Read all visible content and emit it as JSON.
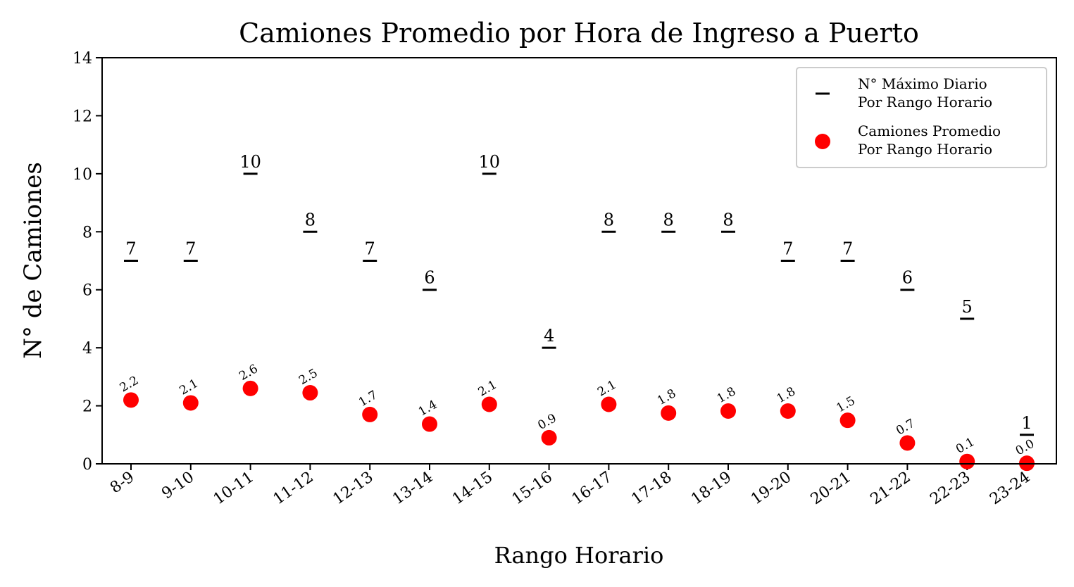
{
  "chart_data": {
    "type": "scatter",
    "title": "Camiones Promedio por Hora de Ingreso a Puerto",
    "xlabel": "Rango Horario",
    "ylabel": "N° de Camiones",
    "ylim": [
      0,
      14
    ],
    "yticks": [
      0,
      2,
      4,
      6,
      8,
      10,
      12,
      14
    ],
    "categories": [
      "8-9",
      "9-10",
      "10-11",
      "11-12",
      "12-13",
      "13-14",
      "14-15",
      "15-16",
      "16-17",
      "17-18",
      "18-19",
      "19-20",
      "20-21",
      "21-22",
      "22-23",
      "23-24"
    ],
    "series": [
      {
        "name": "N° Máximo Diario\nPor Rango Horario",
        "marker": "hline",
        "color": "#000000",
        "values": [
          7,
          7,
          10,
          8,
          7,
          6,
          10,
          4,
          8,
          8,
          8,
          7,
          7,
          6,
          5,
          1
        ],
        "labels": [
          "7",
          "7",
          "10",
          "8",
          "7",
          "6",
          "10",
          "4",
          "8",
          "8",
          "8",
          "7",
          "7",
          "6",
          "5",
          "1"
        ]
      },
      {
        "name": "Camiones Promedio\nPor Rango Horario",
        "marker": "circle",
        "color": "#ff0000",
        "values": [
          2.2,
          2.1,
          2.6,
          2.45,
          1.7,
          1.37,
          2.05,
          0.9,
          2.05,
          1.75,
          1.82,
          1.82,
          1.5,
          0.72,
          0.08,
          0.02
        ],
        "labels": [
          "2.2",
          "2.1",
          "2.6",
          "2.5",
          "1.7",
          "1.4",
          "2.1",
          "0.9",
          "2.1",
          "1.8",
          "1.8",
          "1.8",
          "1.5",
          "0.7",
          "0.1",
          "0.0"
        ]
      }
    ],
    "legend": "top-right",
    "grid": false
  }
}
